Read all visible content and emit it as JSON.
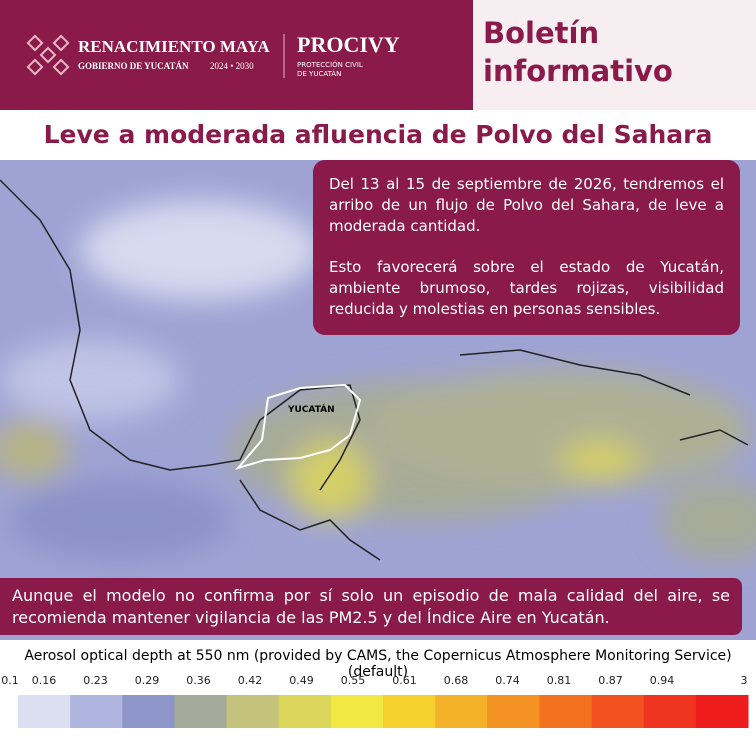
{
  "header": {
    "brand": "RENACIMIENTO MAYA",
    "government": "GOBIERNO DE YUCATÁN",
    "period": "2024 • 2030",
    "agency": "PROCIVY",
    "agency_line1": "PROTECCIÓN CIVIL",
    "agency_line2": "DE YUCATÁN",
    "bulletin": "Boletín informativo"
  },
  "title": "Leve a moderada afluencia de Polvo del Sahara",
  "info_box": {
    "paragraphs": [
      "Del 13 al 15 de septiembre de 2026, tendremos el arribo de un flujo de Polvo del Sahara, de leve a moderada cantidad.",
      "Esto favorecerá sobre el estado de Yucatán, ambiente brumoso, tardes rojizas, visibilidad reducida y molestias en personas sensibles."
    ]
  },
  "map_label": "YUCATÁN",
  "footer_note": "Aunque el modelo no confirma por sí solo un episodio de mala calidad del aire, se recomienda mantener vigilancia de las PM2.5 y del Índice Aire en Yucatán.",
  "legend": {
    "title": "Aerosol optical depth at 550 nm (provided by CAMS, the Copernicus Atmosphere Monitoring Service) (default)",
    "ticks": [
      "0.1",
      "0.16",
      "0.23",
      "0.29",
      "0.36",
      "0.42",
      "0.49",
      "0.55",
      "0.61",
      "0.68",
      "0.74",
      "0.81",
      "0.87",
      "0.94",
      "3"
    ],
    "colors": [
      "#dcdff0",
      "#b0b5e0",
      "#8e95c9",
      "#a6aa9a",
      "#c4c27c",
      "#dbd55c",
      "#f1e842",
      "#f4d12f",
      "#f4b12a",
      "#f49223",
      "#f37220",
      "#f15220",
      "#ef3420",
      "#ee1c1c"
    ]
  }
}
